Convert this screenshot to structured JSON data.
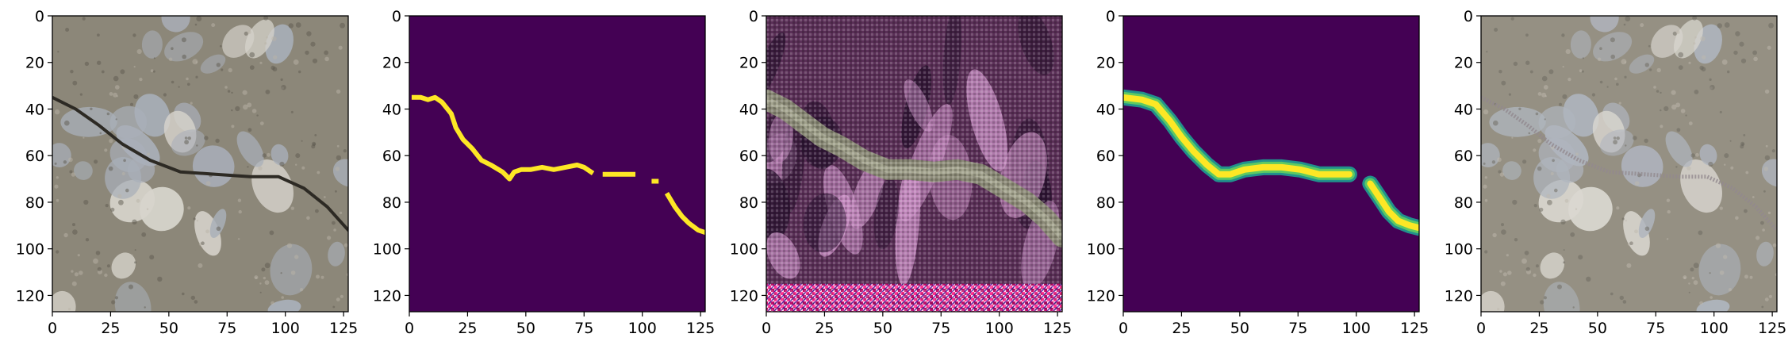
{
  "chart_data": [
    {
      "type": "image",
      "content": "asphalt-photo",
      "xlim": [
        0,
        127
      ],
      "ylim": [
        127,
        0
      ],
      "xticks": [
        0,
        25,
        50,
        75,
        100,
        125
      ],
      "yticks": [
        0,
        20,
        40,
        60,
        80,
        100,
        120
      ],
      "colors": {
        "base": "#8c8779",
        "stone": "#a9afb9",
        "stone_light": "#d7d4cc",
        "crack": "#2d2a24"
      },
      "crack": [
        [
          0,
          35
        ],
        [
          10,
          40
        ],
        [
          20,
          47
        ],
        [
          30,
          55
        ],
        [
          42,
          62
        ],
        [
          55,
          67
        ],
        [
          70,
          68
        ],
        [
          85,
          69
        ],
        [
          97,
          69
        ],
        [
          108,
          74
        ],
        [
          118,
          82
        ],
        [
          127,
          92
        ]
      ]
    },
    {
      "type": "heatmap",
      "content": "binary-mask",
      "xlim": [
        0,
        127
      ],
      "ylim": [
        127,
        0
      ],
      "xticks": [
        0,
        25,
        50,
        75,
        100,
        125
      ],
      "yticks": [
        0,
        20,
        40,
        60,
        80,
        100,
        120
      ],
      "colors": {
        "background": "#440154",
        "foreground": "#fde725"
      },
      "segments": [
        [
          [
            2,
            35
          ],
          [
            5,
            35
          ],
          [
            8,
            36
          ],
          [
            11,
            35
          ],
          [
            14,
            37
          ],
          [
            18,
            42
          ],
          [
            20,
            48
          ],
          [
            23,
            53
          ],
          [
            27,
            57
          ],
          [
            31,
            62
          ],
          [
            35,
            64
          ],
          [
            40,
            67
          ],
          [
            43,
            70
          ],
          [
            45,
            67
          ],
          [
            48,
            66
          ],
          [
            52,
            66
          ],
          [
            57,
            65
          ],
          [
            62,
            66
          ],
          [
            67,
            65
          ],
          [
            72,
            64
          ],
          [
            75,
            65
          ],
          [
            78,
            67
          ]
        ],
        [
          [
            84,
            68
          ],
          [
            88,
            68
          ],
          [
            92,
            68
          ],
          [
            96,
            68
          ]
        ],
        [
          [
            105,
            71
          ],
          [
            106,
            71
          ]
        ],
        [
          [
            111,
            77
          ],
          [
            114,
            82
          ],
          [
            117,
            86
          ],
          [
            120,
            89
          ],
          [
            124,
            92
          ],
          [
            127,
            93
          ]
        ]
      ]
    },
    {
      "type": "image",
      "content": "generated-crack-texture",
      "xlim": [
        0,
        127
      ],
      "ylim": [
        127,
        0
      ],
      "xticks": [
        0,
        25,
        50,
        75,
        100,
        125
      ],
      "yticks": [
        0,
        20,
        40,
        60,
        80,
        100,
        120
      ],
      "colors": {
        "base": "#5a2f57",
        "stripe": "#c98fc4",
        "dark": "#2b1431",
        "band": "#8c8d77",
        "bottom": "#ff3f9a"
      },
      "crack": [
        [
          0,
          36
        ],
        [
          8,
          40
        ],
        [
          16,
          46
        ],
        [
          24,
          52
        ],
        [
          32,
          56
        ],
        [
          42,
          62
        ],
        [
          52,
          66
        ],
        [
          62,
          66
        ],
        [
          72,
          67
        ],
        [
          82,
          66
        ],
        [
          92,
          68
        ],
        [
          102,
          74
        ],
        [
          112,
          80
        ],
        [
          120,
          87
        ],
        [
          127,
          95
        ]
      ],
      "bottom_band": [
        115,
        127
      ]
    },
    {
      "type": "heatmap",
      "content": "soft-prediction",
      "xlim": [
        0,
        127
      ],
      "ylim": [
        127,
        0
      ],
      "xticks": [
        0,
        25,
        50,
        75,
        100,
        125
      ],
      "yticks": [
        0,
        20,
        40,
        60,
        80,
        100,
        120
      ],
      "colors": {
        "background": "#440154",
        "edge": "#21918c",
        "mid": "#5ec962",
        "core": "#fde725"
      },
      "segments": [
        [
          [
            0,
            35
          ],
          [
            8,
            36
          ],
          [
            14,
            38
          ],
          [
            20,
            45
          ],
          [
            25,
            52
          ],
          [
            30,
            58
          ],
          [
            36,
            64
          ],
          [
            41,
            68
          ],
          [
            46,
            68
          ],
          [
            52,
            66
          ],
          [
            60,
            65
          ],
          [
            68,
            65
          ],
          [
            76,
            66
          ],
          [
            84,
            68
          ],
          [
            92,
            68
          ],
          [
            97,
            68
          ]
        ],
        [
          [
            106,
            72
          ],
          [
            110,
            78
          ],
          [
            114,
            84
          ],
          [
            118,
            88
          ],
          [
            123,
            90
          ],
          [
            127,
            91
          ]
        ]
      ]
    },
    {
      "type": "image",
      "content": "asphalt-photo-overlay",
      "xlim": [
        0,
        127
      ],
      "ylim": [
        127,
        0
      ],
      "xticks": [
        0,
        25,
        50,
        75,
        100,
        125
      ],
      "yticks": [
        0,
        20,
        40,
        60,
        80,
        100,
        120
      ],
      "colors": {
        "base": "#8c8779",
        "stone": "#a9afb9",
        "stone_light": "#d7d4cc",
        "overlay": "#8a7f86"
      },
      "crack": [
        [
          0,
          35
        ],
        [
          10,
          40
        ],
        [
          20,
          47
        ],
        [
          30,
          55
        ],
        [
          42,
          62
        ],
        [
          55,
          67
        ],
        [
          70,
          68
        ],
        [
          85,
          69
        ],
        [
          97,
          69
        ],
        [
          108,
          74
        ],
        [
          118,
          82
        ],
        [
          127,
          92
        ]
      ]
    }
  ]
}
